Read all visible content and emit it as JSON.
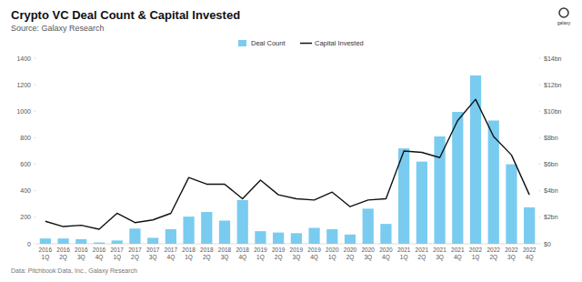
{
  "chart_data": {
    "type": "bar",
    "title": "Crypto VC Deal Count & Capital Invested",
    "subtitle": "Source: Galaxy Research",
    "source_note": "Data: Pitchbook Data, Inc., Galaxy Research",
    "brand": "galaxy",
    "categories": [
      "2016 1Q",
      "2016 2Q",
      "2016 3Q",
      "2016 4Q",
      "2017 1Q",
      "2017 2Q",
      "2017 3Q",
      "2017 4Q",
      "2018 1Q",
      "2018 2Q",
      "2018 3Q",
      "2018 4Q",
      "2019 1Q",
      "2019 2Q",
      "2019 3Q",
      "2019 4Q",
      "2020 1Q",
      "2020 2Q",
      "2020 3Q",
      "2020 4Q",
      "2021 1Q",
      "2021 2Q",
      "2021 3Q",
      "2021 4Q",
      "2022 1Q",
      "2022 2Q",
      "2022 3Q",
      "2022 4Q"
    ],
    "series": [
      {
        "name": "Deal Count",
        "type": "bar",
        "color": "#79ccef",
        "values": [
          40,
          40,
          35,
          10,
          25,
          115,
          45,
          110,
          205,
          240,
          175,
          330,
          95,
          85,
          80,
          120,
          110,
          70,
          265,
          150,
          720,
          620,
          810,
          995,
          1270,
          930,
          600,
          275
        ]
      },
      {
        "name": "Capital Invested",
        "type": "line",
        "color": "#111111",
        "axis": "y2",
        "values": [
          1.7,
          1.3,
          1.4,
          1.1,
          2.3,
          1.6,
          1.8,
          2.3,
          5.0,
          4.5,
          4.5,
          3.4,
          4.8,
          3.7,
          3.4,
          3.3,
          3.9,
          2.8,
          3.3,
          3.4,
          7.0,
          6.9,
          6.5,
          9.3,
          10.9,
          8.1,
          6.7,
          3.7
        ]
      }
    ],
    "ylim": [
      0,
      1400
    ],
    "yticks": [
      0,
      200,
      400,
      600,
      800,
      1000,
      1200,
      1400
    ],
    "y2lim": [
      0,
      14
    ],
    "y2ticks": [
      {
        "value": 0,
        "label": "$0"
      },
      {
        "value": 2,
        "label": "$2bn"
      },
      {
        "value": 4,
        "label": "$4bn"
      },
      {
        "value": 6,
        "label": "$6bn"
      },
      {
        "value": 8,
        "label": "$8bn"
      },
      {
        "value": 10,
        "label": "$10bn"
      },
      {
        "value": 12,
        "label": "$12bn"
      },
      {
        "value": 14,
        "label": "$14bn"
      }
    ],
    "grid": false,
    "legend": "top"
  }
}
